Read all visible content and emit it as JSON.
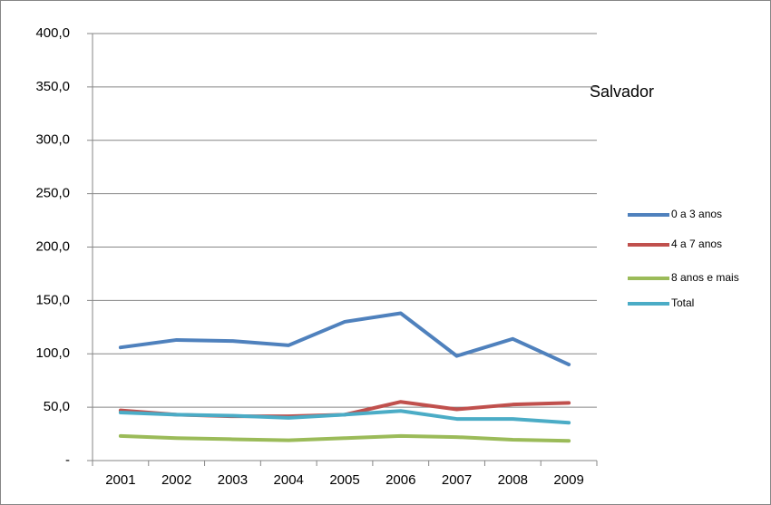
{
  "chart_data": {
    "type": "line",
    "title": "Salvador",
    "categories": [
      "2001",
      "2002",
      "2003",
      "2004",
      "2005",
      "2006",
      "2007",
      "2008",
      "2009"
    ],
    "series": [
      {
        "name": "0 a 3 anos",
        "color": "#4f81bd",
        "values": [
          106,
          113,
          112,
          108,
          130,
          138,
          98,
          114,
          90
        ]
      },
      {
        "name": "4 a 7 anos",
        "color": "#c0504d",
        "values": [
          47,
          43,
          41.5,
          41.5,
          43,
          55,
          48,
          52.5,
          54
        ]
      },
      {
        "name": "8 anos e mais",
        "color": "#9bbb59",
        "values": [
          23,
          21,
          20,
          19,
          21,
          23,
          22,
          19.5,
          18.5
        ]
      },
      {
        "name": "Total",
        "color": "#4bacc6",
        "values": [
          45,
          43,
          42,
          40,
          43,
          46.5,
          39,
          39,
          35.5
        ]
      }
    ],
    "ylim": [
      0,
      400
    ],
    "yticks": [
      {
        "value": 0,
        "label": "-"
      },
      {
        "value": 50,
        "label": "50,0"
      },
      {
        "value": 100,
        "label": "100,0"
      },
      {
        "value": 150,
        "label": "150,0"
      },
      {
        "value": 200,
        "label": "200,0"
      },
      {
        "value": 250,
        "label": "250,0"
      },
      {
        "value": 300,
        "label": "300,0"
      },
      {
        "value": 350,
        "label": "350,0"
      },
      {
        "value": 400,
        "label": "400,0"
      }
    ],
    "grid": true
  }
}
